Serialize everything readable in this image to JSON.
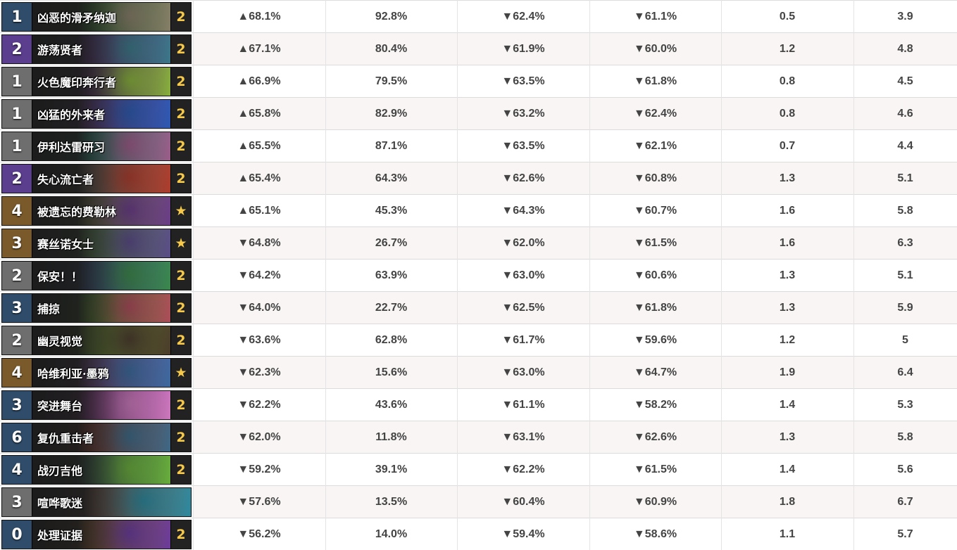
{
  "colors": {
    "green": "#3c9a2f",
    "olive": "#b0a312",
    "amber": "#e4a10f",
    "orange": "#f08a16",
    "red": "#ea5f44",
    "count_text": "#f6c94a"
  },
  "rows": [
    {
      "cost": "1",
      "cost_bg": "#2f4d6b",
      "art": [
        "#6b4d2a",
        "#3d7a3a",
        "#8a7f6a"
      ],
      "name": "凶恶的滑矛纳迦",
      "count": "2",
      "c1": {
        "text": "▲68.1%",
        "tone": "green"
      },
      "c2": "92.8%",
      "c3": {
        "text": "▼62.4%",
        "tone": "orange"
      },
      "c4": {
        "text": "▼61.1%",
        "tone": "orange"
      },
      "c5": "0.5",
      "c6": "3.9"
    },
    {
      "cost": "2",
      "cost_bg": "#5b3e8e",
      "art": [
        "#2b5a7a",
        "#6a3f8a",
        "#3a7a8a"
      ],
      "name": "游荡贤者",
      "count": "2",
      "c1": {
        "text": "▲67.1%",
        "tone": "green"
      },
      "c2": "80.4%",
      "c3": {
        "text": "▼61.9%",
        "tone": "orange"
      },
      "c4": {
        "text": "▼60.0%",
        "tone": "orange"
      },
      "c5": "1.2",
      "c6": "4.8"
    },
    {
      "cost": "1",
      "cost_bg": "#6e6e6e",
      "art": [
        "#4a5a2a",
        "#6a3f7a",
        "#8ab53a"
      ],
      "name": "火色魔印奔行者",
      "count": "2",
      "c1": {
        "text": "▲66.9%",
        "tone": "green"
      },
      "c2": "79.5%",
      "c3": {
        "text": "▼63.5%",
        "tone": "amber"
      },
      "c4": {
        "text": "▼61.8%",
        "tone": "orange"
      },
      "c5": "0.8",
      "c6": "4.5"
    },
    {
      "cost": "1",
      "cost_bg": "#6e6e6e",
      "art": [
        "#3a3f7a",
        "#7a4aa0",
        "#2a5ab5"
      ],
      "name": "凶猛的外来者",
      "count": "2",
      "c1": {
        "text": "▲65.8%",
        "tone": "green"
      },
      "c2": "82.9%",
      "c3": {
        "text": "▼63.2%",
        "tone": "orange"
      },
      "c4": {
        "text": "▼62.4%",
        "tone": "orange"
      },
      "c5": "0.8",
      "c6": "4.6"
    },
    {
      "cost": "1",
      "cost_bg": "#6e6e6e",
      "art": [
        "#2a6a4a",
        "#3aa08a",
        "#a05a8a"
      ],
      "name": "伊利达雷研习",
      "count": "2",
      "c1": {
        "text": "▲65.5%",
        "tone": "green"
      },
      "c2": "87.1%",
      "c3": {
        "text": "▼63.5%",
        "tone": "amber"
      },
      "c4": {
        "text": "▼62.1%",
        "tone": "orange"
      },
      "c5": "0.7",
      "c6": "4.4"
    },
    {
      "cost": "2",
      "cost_bg": "#5b3e8e",
      "art": [
        "#4a3a3a",
        "#8a7a6a",
        "#b03a2a"
      ],
      "name": "失心流亡者",
      "count": "2",
      "c1": {
        "text": "▲65.4%",
        "tone": "green"
      },
      "c2": "64.3%",
      "c3": {
        "text": "▼62.6%",
        "tone": "orange"
      },
      "c4": {
        "text": "▼60.8%",
        "tone": "orange"
      },
      "c5": "1.3",
      "c6": "5.1"
    },
    {
      "cost": "4",
      "cost_bg": "#7a5a2a",
      "art": [
        "#4a4a2a",
        "#8a8a5a",
        "#6a3a8a"
      ],
      "name": "被遗忘的费勒林",
      "count": "★",
      "c1": {
        "text": "▲65.1%",
        "tone": "green"
      },
      "c2": "45.3%",
      "c3": {
        "text": "▼64.3%",
        "tone": "olive"
      },
      "c4": {
        "text": "▼60.7%",
        "tone": "orange"
      },
      "c5": "1.6",
      "c6": "5.8"
    },
    {
      "cost": "3",
      "cost_bg": "#7a5a2a",
      "art": [
        "#3a5a3a",
        "#6a9a5a",
        "#5a4a8a"
      ],
      "name": "赛丝诺女士",
      "count": "★",
      "c1": {
        "text": "▼64.8%",
        "tone": "olive"
      },
      "c2": "26.7%",
      "c3": {
        "text": "▼62.0%",
        "tone": "orange"
      },
      "c4": {
        "text": "▼61.5%",
        "tone": "orange"
      },
      "c5": "1.6",
      "c6": "6.3"
    },
    {
      "cost": "2",
      "cost_bg": "#6e6e6e",
      "art": [
        "#2a3a6a",
        "#4a6aa0",
        "#3a8a4a"
      ],
      "name": "保安！！",
      "count": "2",
      "c1": {
        "text": "▼64.2%",
        "tone": "amber"
      },
      "c2": "63.9%",
      "c3": {
        "text": "▼63.0%",
        "tone": "orange"
      },
      "c4": {
        "text": "▼60.6%",
        "tone": "orange"
      },
      "c5": "1.3",
      "c6": "5.1"
    },
    {
      "cost": "3",
      "cost_bg": "#2f4d6b",
      "art": [
        "#2a5a3a",
        "#6aa03a",
        "#b04a5a"
      ],
      "name": "捕掠",
      "count": "2",
      "c1": {
        "text": "▼64.0%",
        "tone": "amber"
      },
      "c2": "22.7%",
      "c3": {
        "text": "▼62.5%",
        "tone": "orange"
      },
      "c4": {
        "text": "▼61.8%",
        "tone": "orange"
      },
      "c5": "1.3",
      "c6": "5.9"
    },
    {
      "cost": "2",
      "cost_bg": "#6e6e6e",
      "art": [
        "#3a4a2a",
        "#7aa03a",
        "#4a3a2a"
      ],
      "name": "幽灵视觉",
      "count": "2",
      "c1": {
        "text": "▼63.6%",
        "tone": "amber"
      },
      "c2": "62.8%",
      "c3": {
        "text": "▼61.7%",
        "tone": "orange"
      },
      "c4": {
        "text": "▼59.6%",
        "tone": "red"
      },
      "c5": "1.2",
      "c6": "5"
    },
    {
      "cost": "4",
      "cost_bg": "#7a5a2a",
      "art": [
        "#4a2a5a",
        "#8a5aa0",
        "#3a6aa0"
      ],
      "name": "哈维利亚·墨鸦",
      "count": "★",
      "c1": {
        "text": "▼62.3%",
        "tone": "orange"
      },
      "c2": "15.6%",
      "c3": {
        "text": "▼63.0%",
        "tone": "orange"
      },
      "c4": {
        "text": "▼64.7%",
        "tone": "olive"
      },
      "c5": "1.9",
      "c6": "6.4"
    },
    {
      "cost": "3",
      "cost_bg": "#2f4d6b",
      "art": [
        "#5a2a6a",
        "#a04aa0",
        "#d07ac0"
      ],
      "name": "突进舞台",
      "count": "2",
      "c1": {
        "text": "▼62.2%",
        "tone": "orange"
      },
      "c2": "43.6%",
      "c3": {
        "text": "▼61.1%",
        "tone": "orange"
      },
      "c4": {
        "text": "▼58.2%",
        "tone": "red"
      },
      "c5": "1.4",
      "c6": "5.3"
    },
    {
      "cost": "6",
      "cost_bg": "#2f4d6b",
      "art": [
        "#5a2a2a",
        "#a04a3a",
        "#3a6a8a"
      ],
      "name": "复仇重击者",
      "count": "2",
      "c1": {
        "text": "▼62.0%",
        "tone": "orange"
      },
      "c2": "11.8%",
      "c3": {
        "text": "▼63.1%",
        "tone": "orange"
      },
      "c4": {
        "text": "▼62.6%",
        "tone": "orange"
      },
      "c5": "1.3",
      "c6": "5.8"
    },
    {
      "cost": "4",
      "cost_bg": "#2f4d6b",
      "art": [
        "#2a4a3a",
        "#4a7a5a",
        "#6ab03a"
      ],
      "name": "战刃吉他",
      "count": "2",
      "c1": {
        "text": "▼59.2%",
        "tone": "red"
      },
      "c2": "39.1%",
      "c3": {
        "text": "▼62.2%",
        "tone": "orange"
      },
      "c4": {
        "text": "▼61.5%",
        "tone": "orange"
      },
      "c5": "1.4",
      "c6": "5.6"
    },
    {
      "cost": "3",
      "cost_bg": "#6e6e6e",
      "art": [
        "#5a3a3a",
        "#a07a6a",
        "#2a8aa0"
      ],
      "name": "喧哗歌迷",
      "count": "",
      "c1": {
        "text": "▼57.6%",
        "tone": "red"
      },
      "c2": "13.5%",
      "c3": {
        "text": "▼60.4%",
        "tone": "orange"
      },
      "c4": {
        "text": "▼60.9%",
        "tone": "orange"
      },
      "c5": "1.8",
      "c6": "6.7"
    },
    {
      "cost": "0",
      "cost_bg": "#2f4d6b",
      "art": [
        "#5a3a2a",
        "#a06a3a",
        "#6a3aa0"
      ],
      "name": "处理证据",
      "count": "2",
      "c1": {
        "text": "▼56.2%",
        "tone": "red"
      },
      "c2": "14.0%",
      "c3": {
        "text": "▼59.4%",
        "tone": "orange"
      },
      "c4": {
        "text": "▼58.6%",
        "tone": "orange"
      },
      "c5": "1.1",
      "c6": "5.7"
    }
  ]
}
